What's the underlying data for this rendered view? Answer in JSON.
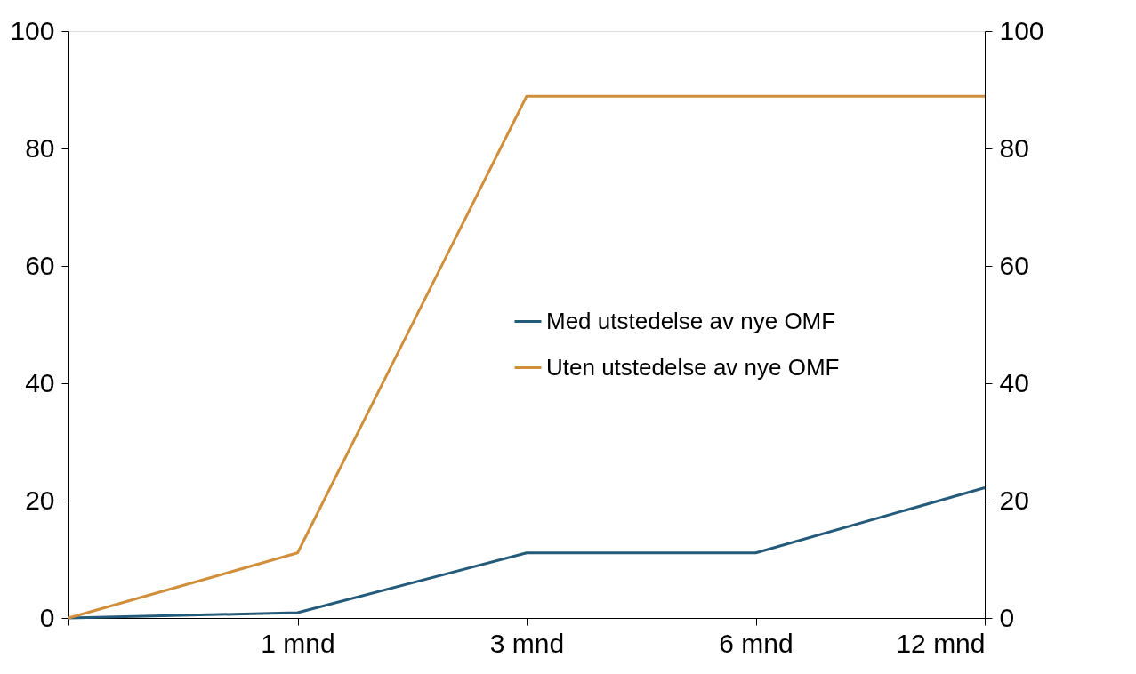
{
  "chart_data": {
    "type": "line",
    "categories": [
      null,
      "1 mnd",
      "3 mnd",
      "6 mnd",
      "12 mnd"
    ],
    "series": [
      {
        "name": "Med utstedelse av nye OMF",
        "color": "#245a7a",
        "values": [
          0,
          0.9,
          11.1,
          11.1,
          22.2
        ]
      },
      {
        "name": "Uten utstedelse av nye OMF",
        "color": "#d18f3c",
        "values": [
          0,
          11.1,
          88.9,
          88.9,
          88.9
        ]
      }
    ],
    "ylim": [
      0,
      100
    ],
    "yticks": [
      0,
      20,
      40,
      60,
      80,
      100
    ],
    "y2lim": [
      0,
      100
    ],
    "y2ticks": [
      0,
      20,
      40,
      60,
      80,
      100
    ],
    "grid": false,
    "legend": "center right",
    "marker": "none",
    "line_style": "solid"
  }
}
